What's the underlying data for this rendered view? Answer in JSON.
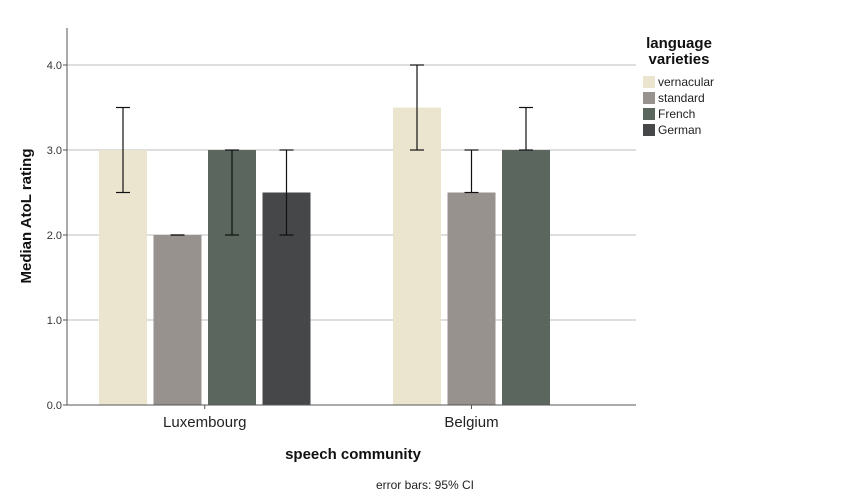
{
  "chart_data": {
    "type": "bar",
    "title": "",
    "xlabel": "speech community",
    "ylabel": "Median AtoL rating",
    "categories": [
      "Luxembourg",
      "Belgium"
    ],
    "ylim": [
      0,
      4.5
    ],
    "yticks": [
      "0.0",
      "1.0",
      "2.0",
      "3.0",
      "4.0"
    ],
    "grid": "horizontal",
    "legend_title": [
      "language",
      "varieties"
    ],
    "legend_position": "right",
    "note": "error bars: 95% CI",
    "series": [
      {
        "name": "vernacular",
        "color": "#ebe5d0",
        "values": [
          3.0,
          3.5
        ],
        "ci_low": [
          2.5,
          3.0
        ],
        "ci_high": [
          3.5,
          4.0
        ]
      },
      {
        "name": "standard",
        "color": "#98928f",
        "values": [
          2.0,
          2.5
        ],
        "ci_low": [
          2.0,
          2.5
        ],
        "ci_high": [
          2.0,
          3.0
        ]
      },
      {
        "name": "French",
        "color": "#5a665e",
        "values": [
          3.0,
          3.0
        ],
        "ci_low": [
          2.0,
          3.0
        ],
        "ci_high": [
          3.0,
          3.5
        ]
      },
      {
        "name": "German",
        "color": "#454749",
        "values": [
          2.5,
          null
        ],
        "ci_low": [
          2.0,
          null
        ],
        "ci_high": [
          3.0,
          null
        ]
      }
    ]
  }
}
